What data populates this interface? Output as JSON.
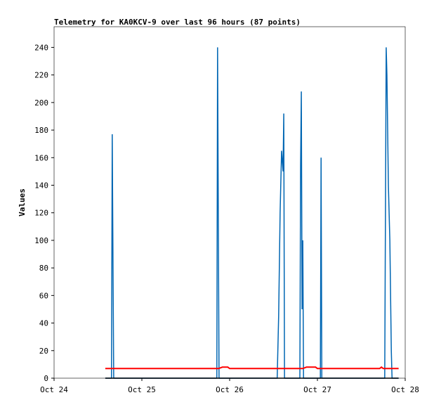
{
  "chart_data": {
    "type": "line",
    "title": "Telemetry for KA0KCV-9 over last 96 hours (87 points)",
    "y_label": "Values",
    "xlim": [
      0,
      96
    ],
    "xticks": [
      {
        "value": 0,
        "label": "Oct 24"
      },
      {
        "value": 24,
        "label": "Oct 25"
      },
      {
        "value": 48,
        "label": "Oct 26"
      },
      {
        "value": 72,
        "label": "Oct 27"
      },
      {
        "value": 96,
        "label": "Oct 28"
      }
    ],
    "ylim": [
      0,
      255
    ],
    "yticks": [
      0,
      20,
      40,
      60,
      80,
      100,
      120,
      140,
      160,
      180,
      200,
      220,
      240
    ],
    "grid": false,
    "series": [
      {
        "color": "#0066b3",
        "x": [
          14,
          15.7,
          15.9,
          16.1,
          16.3,
          44.5,
          44.7,
          44.9,
          45.1,
          61,
          61.4,
          61.8,
          62.2,
          62.6,
          62.8,
          63.0,
          67.2,
          67.4,
          67.6,
          67.8,
          68.0,
          68.2,
          72.8,
          73.0,
          73.2,
          90.4,
          90.6,
          90.8,
          91.0,
          91.2,
          91.4,
          91.8,
          92.2,
          92.4,
          94.2
        ],
        "values": [
          0,
          0,
          177,
          88,
          0,
          0,
          240,
          120,
          0,
          0,
          45,
          120,
          165,
          150,
          192,
          0,
          0,
          155,
          208,
          50,
          100,
          0,
          0,
          160,
          0,
          0,
          120,
          240,
          220,
          180,
          140,
          100,
          20,
          0,
          0
        ]
      },
      {
        "color": "#ff0000",
        "x": [
          14,
          45,
          46,
          47.5,
          48,
          68,
          69,
          71.5,
          72,
          89,
          89.5,
          90,
          94.2
        ],
        "values": [
          7,
          7,
          8,
          8,
          7,
          7,
          8,
          8,
          7,
          7,
          8,
          7,
          7
        ]
      },
      {
        "color": "#000000",
        "x": [
          14,
          94.2
        ],
        "values": [
          0,
          0
        ]
      }
    ]
  }
}
